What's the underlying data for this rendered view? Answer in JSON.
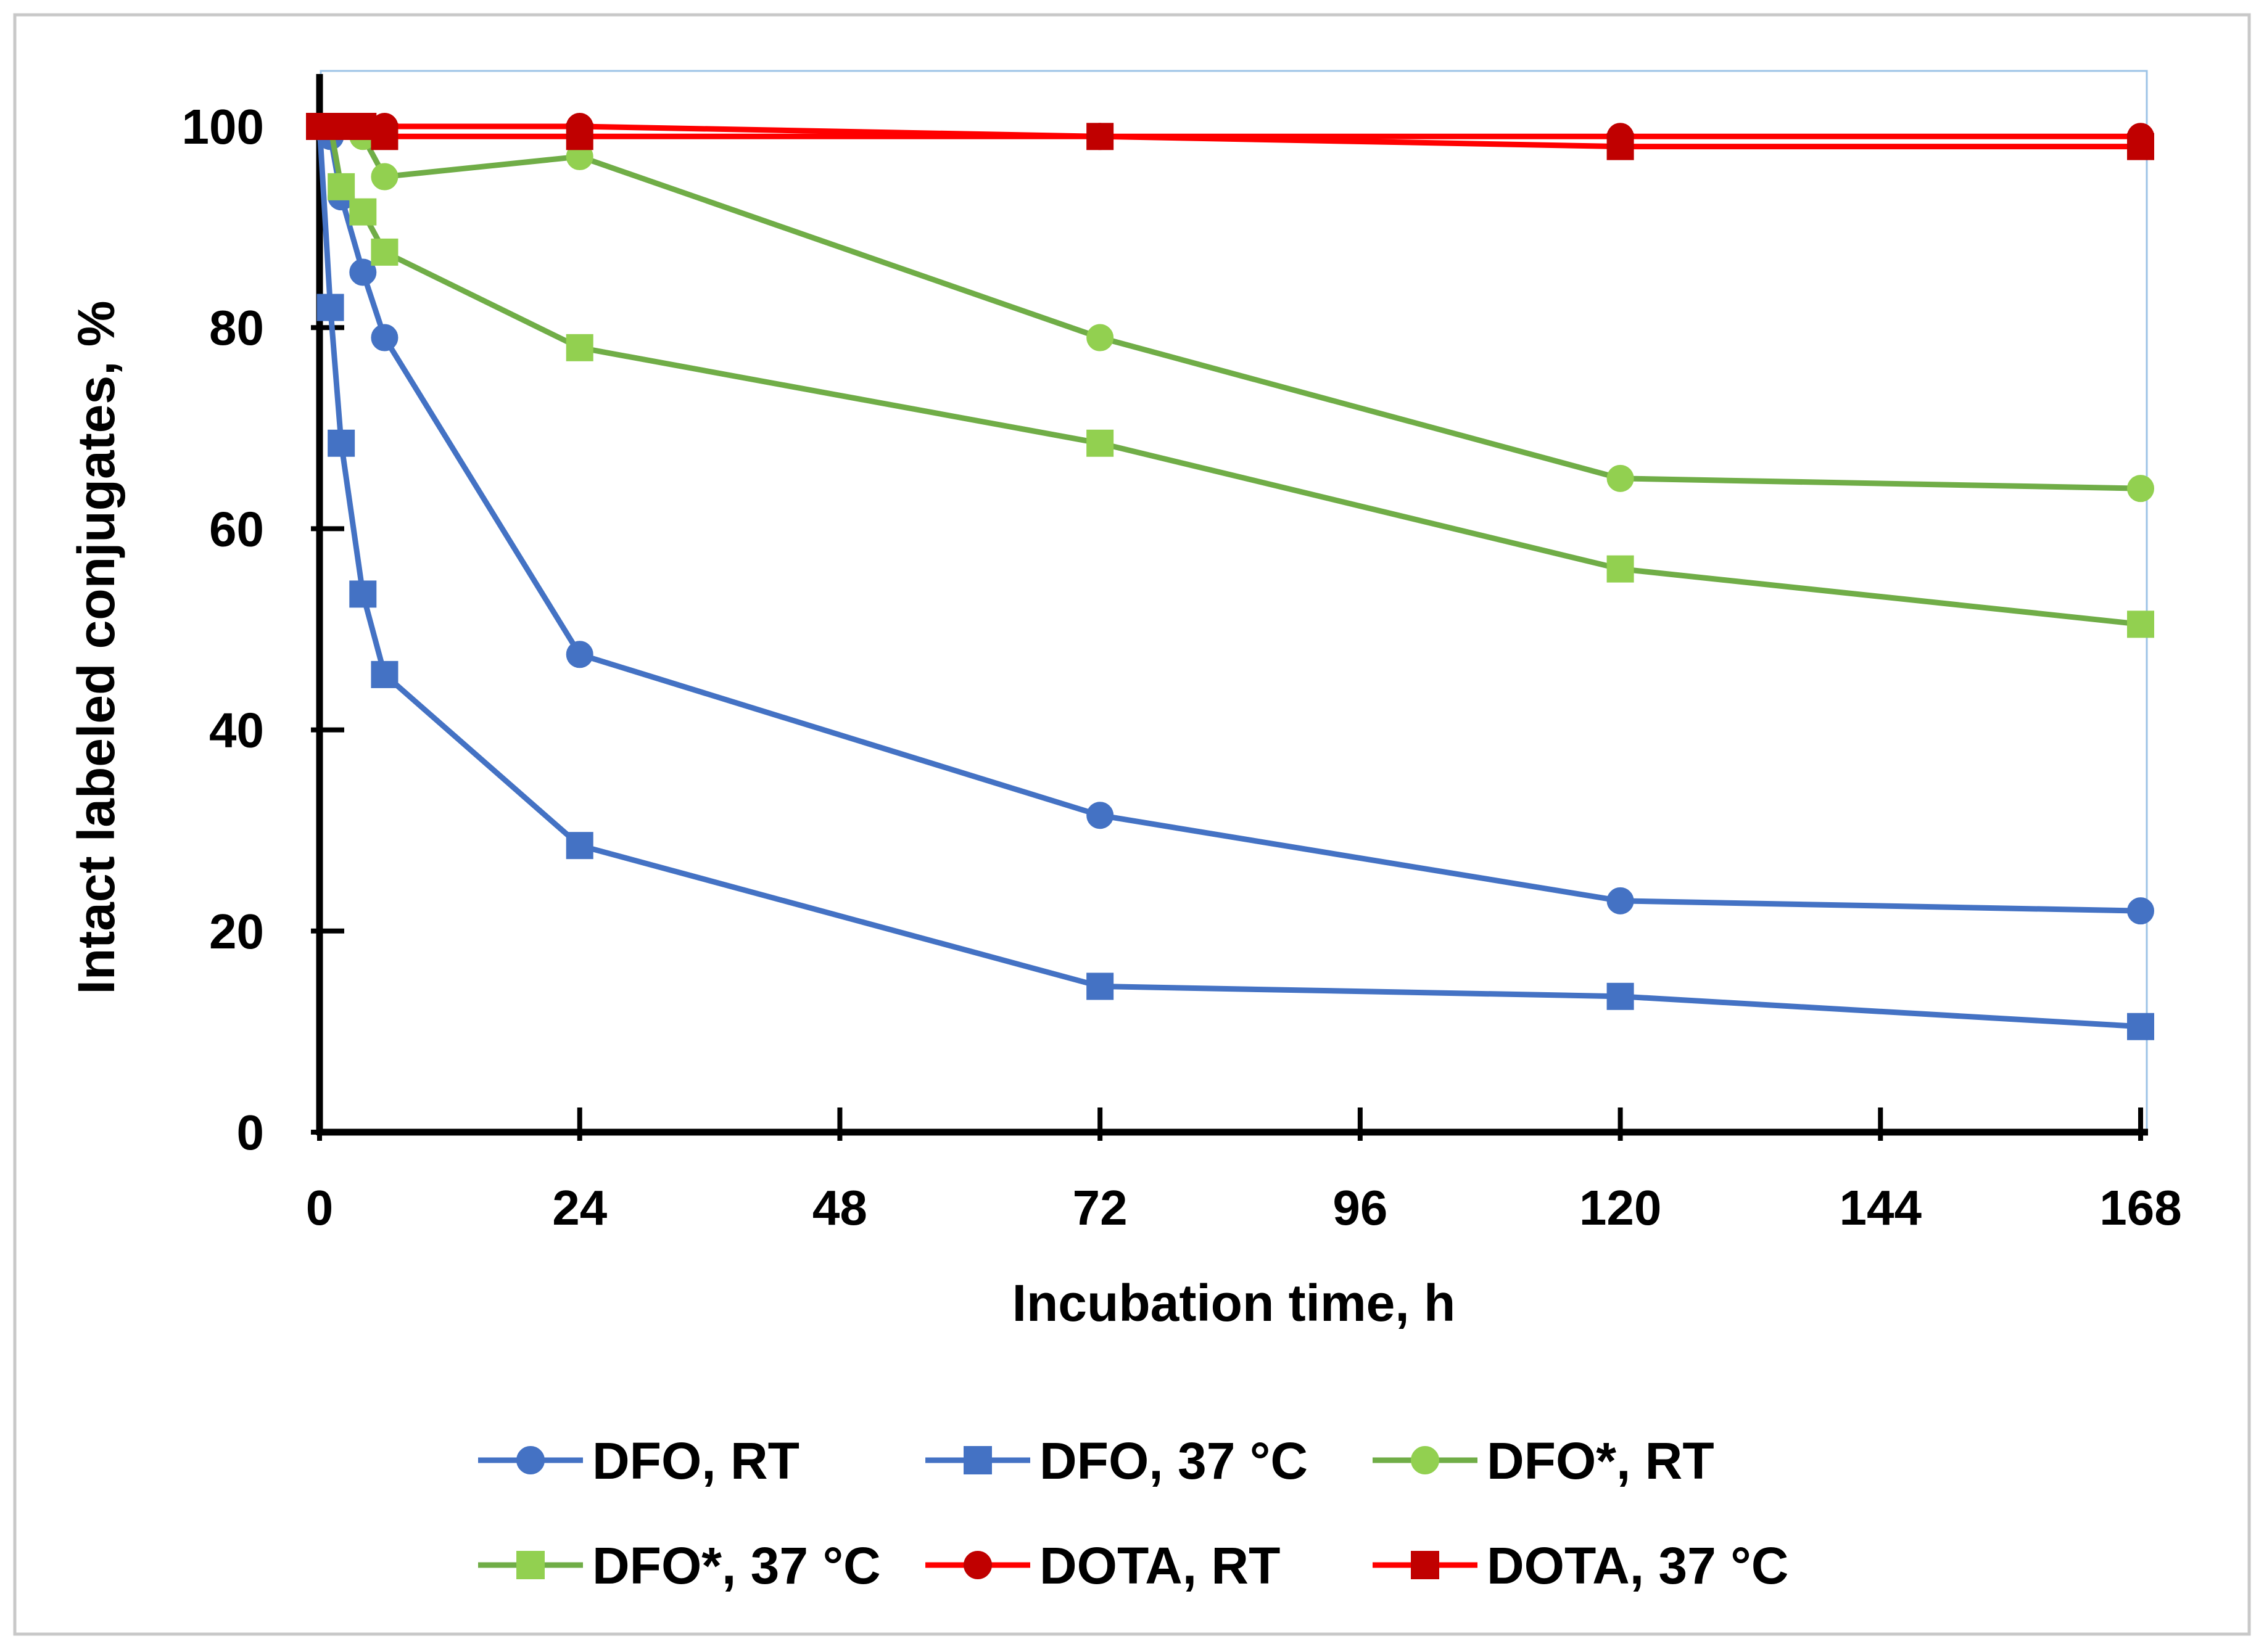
{
  "chart_data": {
    "type": "line",
    "title": "",
    "xlabel": "Incubation time, h",
    "ylabel": "Intact labeled conjugates, %",
    "xlim": [
      0,
      168
    ],
    "ylim": [
      0,
      100
    ],
    "xticks": [
      0,
      24,
      48,
      72,
      96,
      120,
      144,
      168
    ],
    "yticks": [
      0,
      20,
      40,
      60,
      80,
      100
    ],
    "grid": false,
    "legend_position": "bottom",
    "series": [
      {
        "name": "DFO, RT",
        "color": "#4472C4",
        "marker": "circle",
        "x": [
          0,
          1,
          2,
          4,
          6,
          24,
          72,
          120,
          168
        ],
        "y": [
          100,
          99,
          93,
          85.5,
          79,
          47.5,
          31.5,
          23,
          22
        ]
      },
      {
        "name": "DFO, 37 °C",
        "color": "#4472C4",
        "marker": "square",
        "x": [
          0,
          1,
          2,
          4,
          6,
          24,
          72,
          120,
          168
        ],
        "y": [
          100,
          82,
          68.5,
          53.5,
          45.5,
          28.5,
          14.5,
          13.5,
          10.5
        ]
      },
      {
        "name": "DFO*, RT",
        "color": "#70AD47",
        "marker": "circle",
        "x": [
          0,
          1,
          2,
          4,
          6,
          24,
          72,
          120,
          168
        ],
        "y": [
          100,
          100,
          100,
          99,
          95,
          97,
          79,
          65,
          64
        ]
      },
      {
        "name": "DFO*, 37 °C",
        "color": "#70AD47",
        "marker": "square",
        "x": [
          0,
          1,
          2,
          4,
          6,
          24,
          72,
          120,
          168
        ],
        "y": [
          100,
          100,
          94,
          91.5,
          87.5,
          78,
          68.5,
          56,
          50.5
        ]
      },
      {
        "name": "DOTA, RT",
        "color": "#FF0000",
        "marker": "circle",
        "x": [
          0,
          1,
          2,
          4,
          6,
          24,
          72,
          120,
          168
        ],
        "y": [
          100,
          100,
          100,
          100,
          100,
          100,
          99,
          99,
          99
        ]
      },
      {
        "name": "DOTA, 37 °C",
        "color": "#FF0000",
        "marker": "square",
        "x": [
          0,
          1,
          2,
          4,
          6,
          24,
          72,
          120,
          168
        ],
        "y": [
          100,
          100,
          100,
          100,
          99,
          99,
          99,
          98,
          98
        ]
      }
    ]
  },
  "marker_fill": {
    "#4472C4": "#4472C4",
    "#70AD47": "#92D050",
    "#FF0000": "#C00000"
  }
}
